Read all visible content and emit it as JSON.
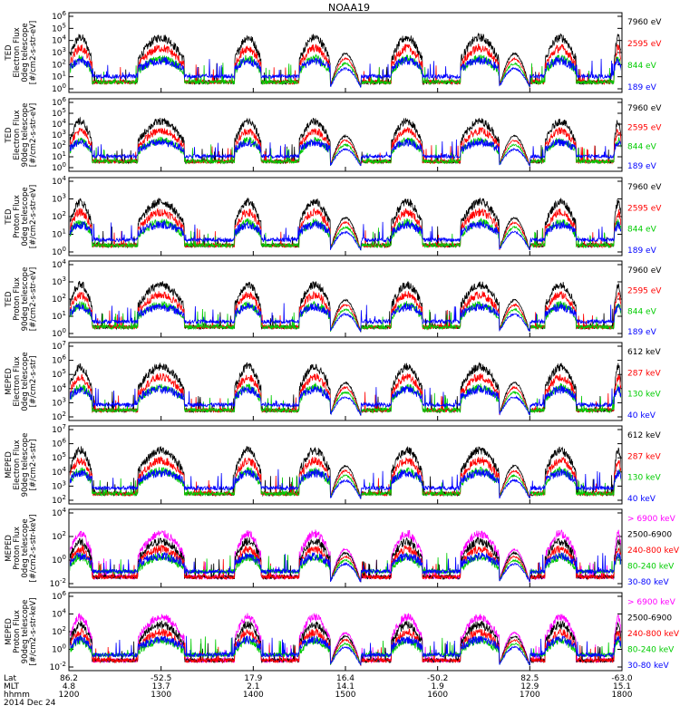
{
  "title": "NOAA19",
  "chart_data": {
    "type": "line",
    "title": "NOAA19",
    "x": {
      "ticks": [
        {
          "lat": "86.2",
          "mlt": "4.8",
          "time": "1200"
        },
        {
          "lat": "-52.5",
          "mlt": "13.7",
          "time": "1300"
        },
        {
          "lat": "17.9",
          "mlt": "2.1",
          "time": "1400"
        },
        {
          "lat": "16.4",
          "mlt": "14.1",
          "time": "1500"
        },
        {
          "lat": "-50.2",
          "mlt": "1.9",
          "time": "1600"
        },
        {
          "lat": "82.5",
          "mlt": "12.9",
          "time": "1700"
        },
        {
          "lat": "-63.0",
          "mlt": "15.1",
          "time": "1800"
        }
      ],
      "row_labels": [
        "Lat",
        "MLT",
        "hhmm"
      ],
      "date": "2014 Dec 24",
      "range": [
        "1200",
        "1800"
      ]
    },
    "panels": [
      {
        "ylabel": [
          "TED",
          "Electron Flux",
          "0deg telescope",
          "[#/cm2-s-str-eV]"
        ],
        "yticks": [
          "10^6",
          "10^5",
          "10^4",
          "10^3",
          "10^2",
          "10^1",
          "10^0"
        ],
        "ylim_exp": [
          0,
          6
        ],
        "series": [
          {
            "name": "7960 eV",
            "color": "#000000"
          },
          {
            "name": "2595 eV",
            "color": "#ff0000"
          },
          {
            "name": "844 eV",
            "color": "#00cc00"
          },
          {
            "name": "189 eV",
            "color": "#0000ff"
          }
        ]
      },
      {
        "ylabel": [
          "TED",
          "Electron Flux",
          "90deg telescope",
          "[#/cm2-s-str-eV]"
        ],
        "yticks": [
          "10^6",
          "10^5",
          "10^4",
          "10^3",
          "10^2",
          "10^1",
          "10^0"
        ],
        "ylim_exp": [
          0,
          6
        ],
        "series": [
          {
            "name": "7960 eV",
            "color": "#000000"
          },
          {
            "name": "2595 eV",
            "color": "#ff0000"
          },
          {
            "name": "844 eV",
            "color": "#00cc00"
          },
          {
            "name": "189 eV",
            "color": "#0000ff"
          }
        ]
      },
      {
        "ylabel": [
          "TED",
          "Proton Flux",
          "0deg telescope",
          "[#/cm2-s-str-eV]"
        ],
        "yticks": [
          "10^4",
          "10^3",
          "10^2",
          "10^1",
          "10^0"
        ],
        "ylim_exp": [
          0,
          4.5
        ],
        "series": [
          {
            "name": "7960 eV",
            "color": "#000000"
          },
          {
            "name": "2595 eV",
            "color": "#ff0000"
          },
          {
            "name": "844 eV",
            "color": "#00cc00"
          },
          {
            "name": "189 eV",
            "color": "#0000ff"
          }
        ]
      },
      {
        "ylabel": [
          "TED",
          "Proton Flux",
          "90deg telescope",
          "[#/cm2-s-str-eV]"
        ],
        "yticks": [
          "10^4",
          "10^3",
          "10^2",
          "10^1",
          "10^0"
        ],
        "ylim_exp": [
          0,
          4.5
        ],
        "series": [
          {
            "name": "7960 eV",
            "color": "#000000"
          },
          {
            "name": "2595 eV",
            "color": "#ff0000"
          },
          {
            "name": "844 eV",
            "color": "#00cc00"
          },
          {
            "name": "189 eV",
            "color": "#0000ff"
          }
        ]
      },
      {
        "ylabel": [
          "MEPED",
          "Electron Flux",
          "0deg telescope",
          "[#/cm2-s-str]"
        ],
        "yticks": [
          "10^7",
          "10^6",
          "10^5",
          "10^4",
          "10^3",
          "10^2"
        ],
        "ylim_exp": [
          2,
          7
        ],
        "series": [
          {
            "name": "612 keV",
            "color": "#000000"
          },
          {
            "name": "287 keV",
            "color": "#ff0000"
          },
          {
            "name": "130 keV",
            "color": "#00cc00"
          },
          {
            "name": "40 keV",
            "color": "#0000ff"
          }
        ]
      },
      {
        "ylabel": [
          "MEPED",
          "Electron Flux",
          "90deg telescope",
          "[#/cm2-s-str]"
        ],
        "yticks": [
          "10^7",
          "10^6",
          "10^5",
          "10^4",
          "10^3",
          "10^2"
        ],
        "ylim_exp": [
          2,
          7
        ],
        "series": [
          {
            "name": "612 keV",
            "color": "#000000"
          },
          {
            "name": "287 keV",
            "color": "#ff0000"
          },
          {
            "name": "130 keV",
            "color": "#00cc00"
          },
          {
            "name": "40 keV",
            "color": "#0000ff"
          }
        ]
      },
      {
        "ylabel": [
          "MEPED",
          "Proton Flux",
          "0deg telescope",
          "[#/cm2-s-str-keV]"
        ],
        "yticks": [
          "10^4",
          "10^2",
          "10^0",
          "10^-2"
        ],
        "ylim_exp": [
          -2.5,
          5
        ],
        "series": [
          {
            "name": "> 6900 keV",
            "color": "#ff00ff"
          },
          {
            "name": "2500-6900",
            "color": "#000000"
          },
          {
            "name": "240-800 keV",
            "color": "#ff0000"
          },
          {
            "name": "80-240 keV",
            "color": "#00cc00"
          },
          {
            "name": "30-80 keV",
            "color": "#0000ff"
          }
        ]
      },
      {
        "ylabel": [
          "MEPED",
          "Proton Flux",
          "90deg telescope",
          "[#/cm2-s-str-keV]"
        ],
        "yticks": [
          "10^6",
          "10^4",
          "10^2",
          "10^0",
          "10^-2"
        ],
        "ylim_exp": [
          -2.5,
          6.5
        ],
        "series": [
          {
            "name": "> 6900 keV",
            "color": "#ff00ff"
          },
          {
            "name": "2500-6900",
            "color": "#000000"
          },
          {
            "name": "240-800 keV",
            "color": "#ff0000"
          },
          {
            "name": "80-240 keV",
            "color": "#00cc00"
          },
          {
            "name": "30-80 keV",
            "color": "#0000ff"
          }
        ]
      }
    ],
    "passes": [
      {
        "start": 1200,
        "end": 1215
      },
      {
        "start": 1245,
        "end": 1315
      },
      {
        "start": 1348,
        "end": 1405
      },
      {
        "start": 1430,
        "end": 1450
      },
      {
        "start": 1530,
        "end": 1550
      },
      {
        "start": 1615,
        "end": 1640
      },
      {
        "start": 1710,
        "end": 1730
      },
      {
        "start": 1755,
        "end": 1800
      }
    ],
    "arcs": [
      {
        "start": 1450,
        "end": 1510
      },
      {
        "start": 1640,
        "end": 1700
      }
    ]
  }
}
